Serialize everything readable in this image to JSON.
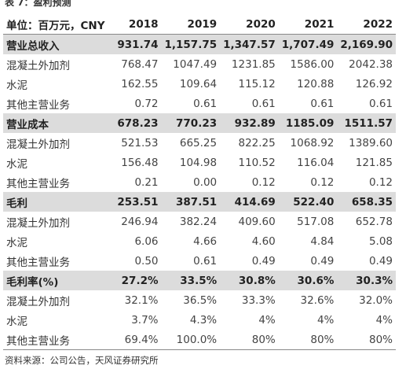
{
  "header": {
    "title": "表 7：盈利预测"
  },
  "table": {
    "columns": [
      "单位：百万元，CNY",
      "2018",
      "2019",
      "2020",
      "2021",
      "2022"
    ],
    "section_rows": [
      0,
      4,
      8,
      12
    ],
    "rows": [
      [
        "营业总收入",
        "931.74",
        "1,157.75",
        "1,347.57",
        "1,707.49",
        "2,169.90"
      ],
      [
        "混凝土外加剂",
        "768.47",
        "1047.49",
        "1231.85",
        "1586.00",
        "2042.38"
      ],
      [
        "水泥",
        "162.55",
        "109.64",
        "115.12",
        "120.88",
        "126.92"
      ],
      [
        "其他主营业务",
        "0.72",
        "0.61",
        "0.61",
        "0.61",
        "0.61"
      ],
      [
        "营业成本",
        "678.23",
        "770.23",
        "932.89",
        "1185.09",
        "1511.57"
      ],
      [
        "混凝土外加剂",
        "521.53",
        "665.25",
        "822.25",
        "1068.92",
        "1389.60"
      ],
      [
        "水泥",
        "156.48",
        "104.98",
        "110.52",
        "116.04",
        "121.85"
      ],
      [
        "其他主营业务",
        "0.21",
        "0.00",
        "0.12",
        "0.12",
        "0.12"
      ],
      [
        "毛利",
        "253.51",
        "387.51",
        "414.69",
        "522.40",
        "658.35"
      ],
      [
        "混凝土外加剂",
        "246.94",
        "382.24",
        "409.60",
        "517.08",
        "652.78"
      ],
      [
        "水泥",
        "6.06",
        "4.66",
        "4.60",
        "4.84",
        "5.08"
      ],
      [
        "其他主营业务",
        "0.50",
        "0.61",
        "0.49",
        "0.49",
        "0.49"
      ],
      [
        "毛利率(%)",
        "27.2%",
        "33.5%",
        "30.8%",
        "30.6%",
        "30.3%"
      ],
      [
        "混凝土外加剂",
        "32.1%",
        "36.5%",
        "33.3%",
        "32.6%",
        "32.0%"
      ],
      [
        "水泥",
        "3.7%",
        "4.3%",
        "4%",
        "4%",
        "4%"
      ],
      [
        "其他主营业务",
        "69.4%",
        "100.0%",
        "80%",
        "80%",
        "80%"
      ]
    ]
  },
  "footer": {
    "source": "资料来源：公司公告，天风证券研究所"
  }
}
